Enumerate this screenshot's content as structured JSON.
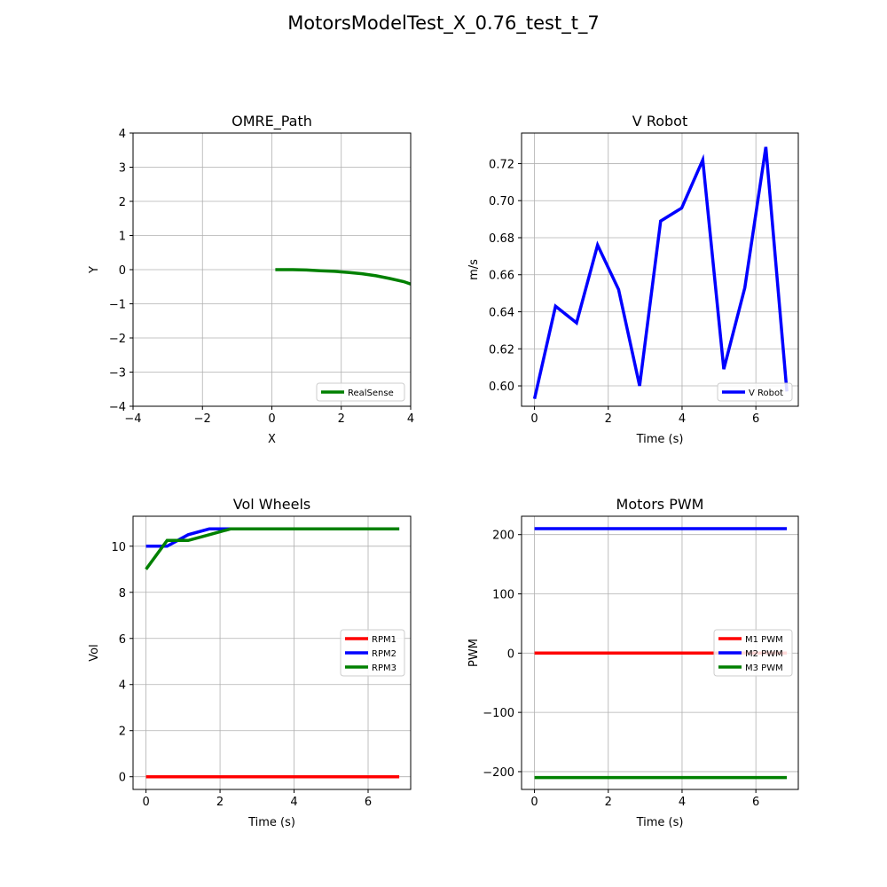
{
  "figure": {
    "title": "MotorsModelTest_X_0.76_test_t_7"
  },
  "chart_data": [
    {
      "type": "line",
      "title": "OMRE_Path",
      "xlabel": "X",
      "ylabel": "Y",
      "xlim": [
        -4,
        4
      ],
      "ylim": [
        -4,
        4
      ],
      "xticks": [
        -4,
        -2,
        0,
        2,
        4
      ],
      "yticks": [
        -4,
        -3,
        -2,
        -1,
        0,
        1,
        2,
        3,
        4
      ],
      "xtick_labels": [
        "−4",
        "−2",
        "0",
        "2",
        "4"
      ],
      "ytick_labels": [
        "−4",
        "−3",
        "−2",
        "−1",
        "0",
        "1",
        "2",
        "3",
        "4"
      ],
      "grid": true,
      "legend": "lower right",
      "series": [
        {
          "name": "RealSense",
          "color": "#008000",
          "x": [
            0.1,
            0.6,
            1.0,
            1.4,
            1.8,
            2.2,
            2.6,
            3.0,
            3.4,
            3.8,
            4.0
          ],
          "y": [
            0.0,
            0.0,
            -0.01,
            -0.03,
            -0.05,
            -0.08,
            -0.12,
            -0.18,
            -0.26,
            -0.35,
            -0.42
          ]
        }
      ]
    },
    {
      "type": "line",
      "title": "V Robot",
      "xlabel": "Time (s)",
      "ylabel": "m/s",
      "xlim": [
        -0.35,
        7.15
      ],
      "ylim": [
        0.589,
        0.7365
      ],
      "xticks": [
        0,
        2,
        4,
        6
      ],
      "yticks": [
        0.6,
        0.62,
        0.64,
        0.66,
        0.68,
        0.7,
        0.72
      ],
      "xtick_labels": [
        "0",
        "2",
        "4",
        "6"
      ],
      "ytick_labels": [
        "0.60",
        "0.62",
        "0.64",
        "0.66",
        "0.68",
        "0.70",
        "0.72"
      ],
      "grid": true,
      "legend": "lower right",
      "series": [
        {
          "name": "V Robot",
          "color": "#0000ff",
          "x": [
            0,
            0.57,
            1.14,
            1.71,
            2.28,
            2.85,
            3.42,
            3.99,
            4.56,
            5.13,
            5.7,
            6.27,
            6.84
          ],
          "y": [
            0.593,
            0.643,
            0.634,
            0.676,
            0.652,
            0.6,
            0.689,
            0.696,
            0.722,
            0.609,
            0.653,
            0.729,
            0.597
          ]
        }
      ]
    },
    {
      "type": "line",
      "title": "Vol Wheels",
      "xlabel": "Time (s)",
      "ylabel": "Vol",
      "xlim": [
        -0.35,
        7.15
      ],
      "ylim": [
        -0.55,
        11.3
      ],
      "xticks": [
        0,
        2,
        4,
        6
      ],
      "yticks": [
        0,
        2,
        4,
        6,
        8,
        10
      ],
      "xtick_labels": [
        "0",
        "2",
        "4",
        "6"
      ],
      "ytick_labels": [
        "0",
        "2",
        "4",
        "6",
        "8",
        "10"
      ],
      "grid": true,
      "legend": "center right",
      "series": [
        {
          "name": "RPM1",
          "color": "#ff0000",
          "x": [
            0,
            6.84
          ],
          "y": [
            0,
            0
          ]
        },
        {
          "name": "RPM2",
          "color": "#0000ff",
          "x": [
            0,
            0.57,
            1.14,
            1.71,
            2.28,
            6.84
          ],
          "y": [
            10.0,
            10.0,
            10.5,
            10.75,
            10.75,
            10.75
          ]
        },
        {
          "name": "RPM3",
          "color": "#008000",
          "x": [
            0,
            0.57,
            1.14,
            1.71,
            2.28,
            6.84
          ],
          "y": [
            9.0,
            10.25,
            10.25,
            10.5,
            10.75,
            10.75
          ]
        }
      ]
    },
    {
      "type": "line",
      "title": "Motors PWM",
      "xlabel": "Time (s)",
      "ylabel": "PWM",
      "xlim": [
        -0.35,
        7.15
      ],
      "ylim": [
        -230,
        231
      ],
      "xticks": [
        0,
        2,
        4,
        6
      ],
      "yticks": [
        -200,
        -100,
        0,
        100,
        200
      ],
      "xtick_labels": [
        "0",
        "2",
        "4",
        "6"
      ],
      "ytick_labels": [
        "−200",
        "−100",
        "0",
        "100",
        "200"
      ],
      "grid": true,
      "legend": "center right",
      "series": [
        {
          "name": "M1 PWM",
          "color": "#ff0000",
          "x": [
            0,
            6.84
          ],
          "y": [
            0,
            0
          ]
        },
        {
          "name": "M2 PWM",
          "color": "#0000ff",
          "x": [
            0,
            6.84
          ],
          "y": [
            210,
            210
          ]
        },
        {
          "name": "M3 PWM",
          "color": "#008000",
          "x": [
            0,
            6.84
          ],
          "y": [
            -210,
            -210
          ]
        }
      ]
    }
  ]
}
